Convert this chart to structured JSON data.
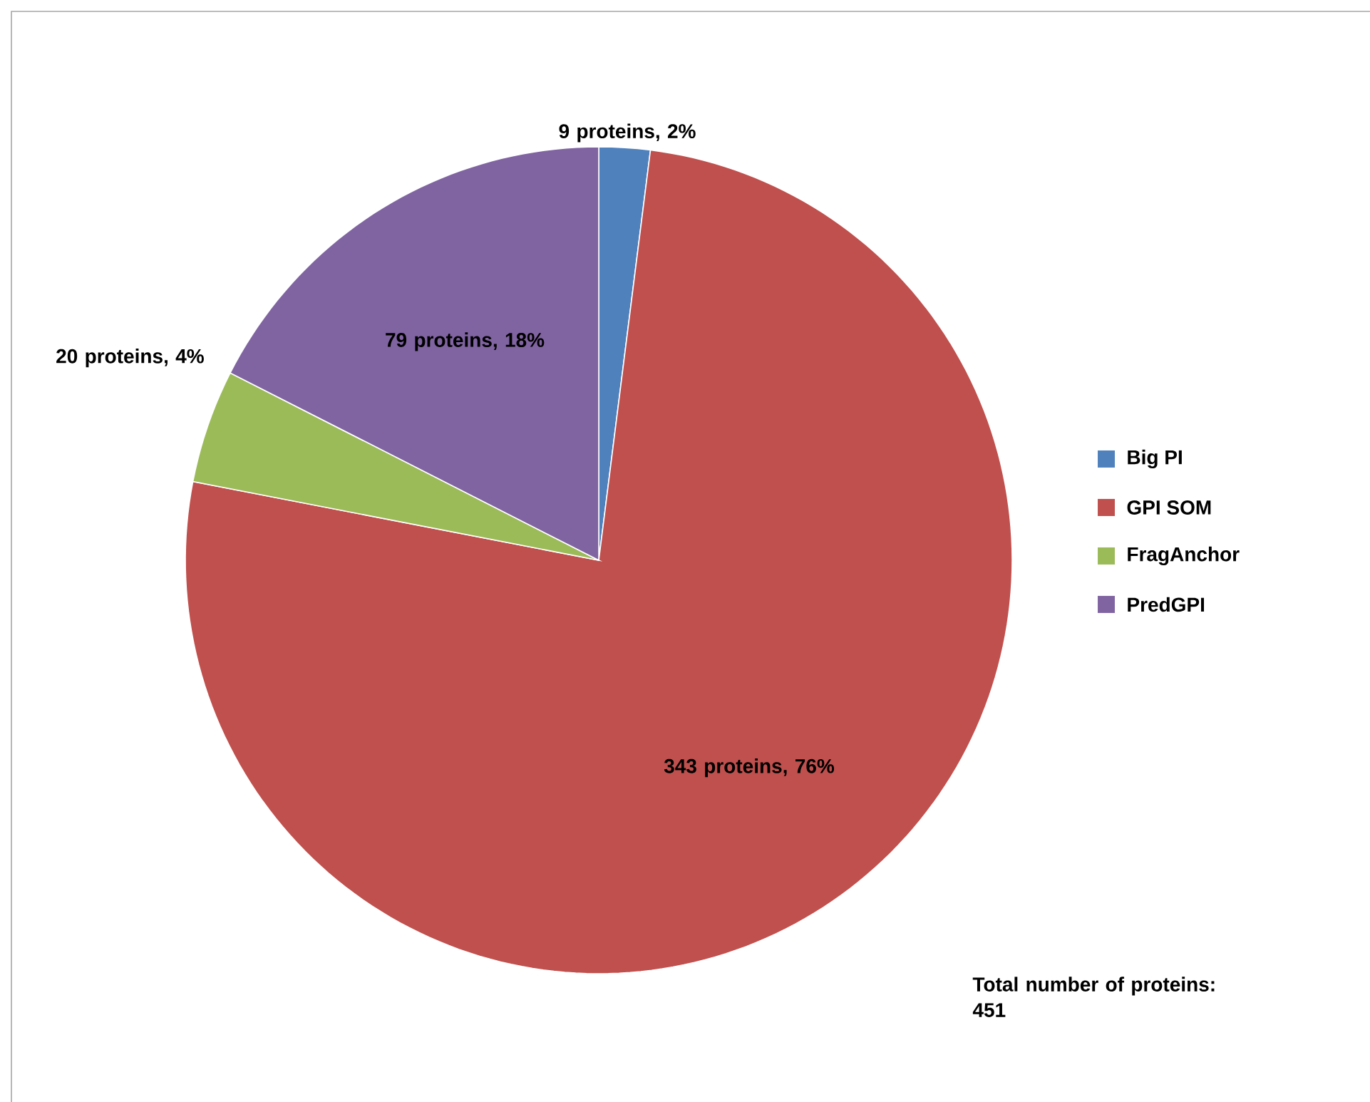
{
  "chart_data": {
    "type": "pie",
    "categories": [
      "Big PI",
      "GPI SOM",
      "FragAnchor",
      "PredGPI"
    ],
    "values": [
      9,
      343,
      20,
      79
    ],
    "colors": [
      "#4f81bd",
      "#c0504d",
      "#9bbb59",
      "#8064a2"
    ],
    "value_labels": [
      "9 proteins, 2%",
      "343 proteins, 76%",
      "20 proteins, 4%",
      "79 proteins, 18%"
    ],
    "legend": "right",
    "annotations": [
      "Total number of proteins: 451"
    ]
  }
}
